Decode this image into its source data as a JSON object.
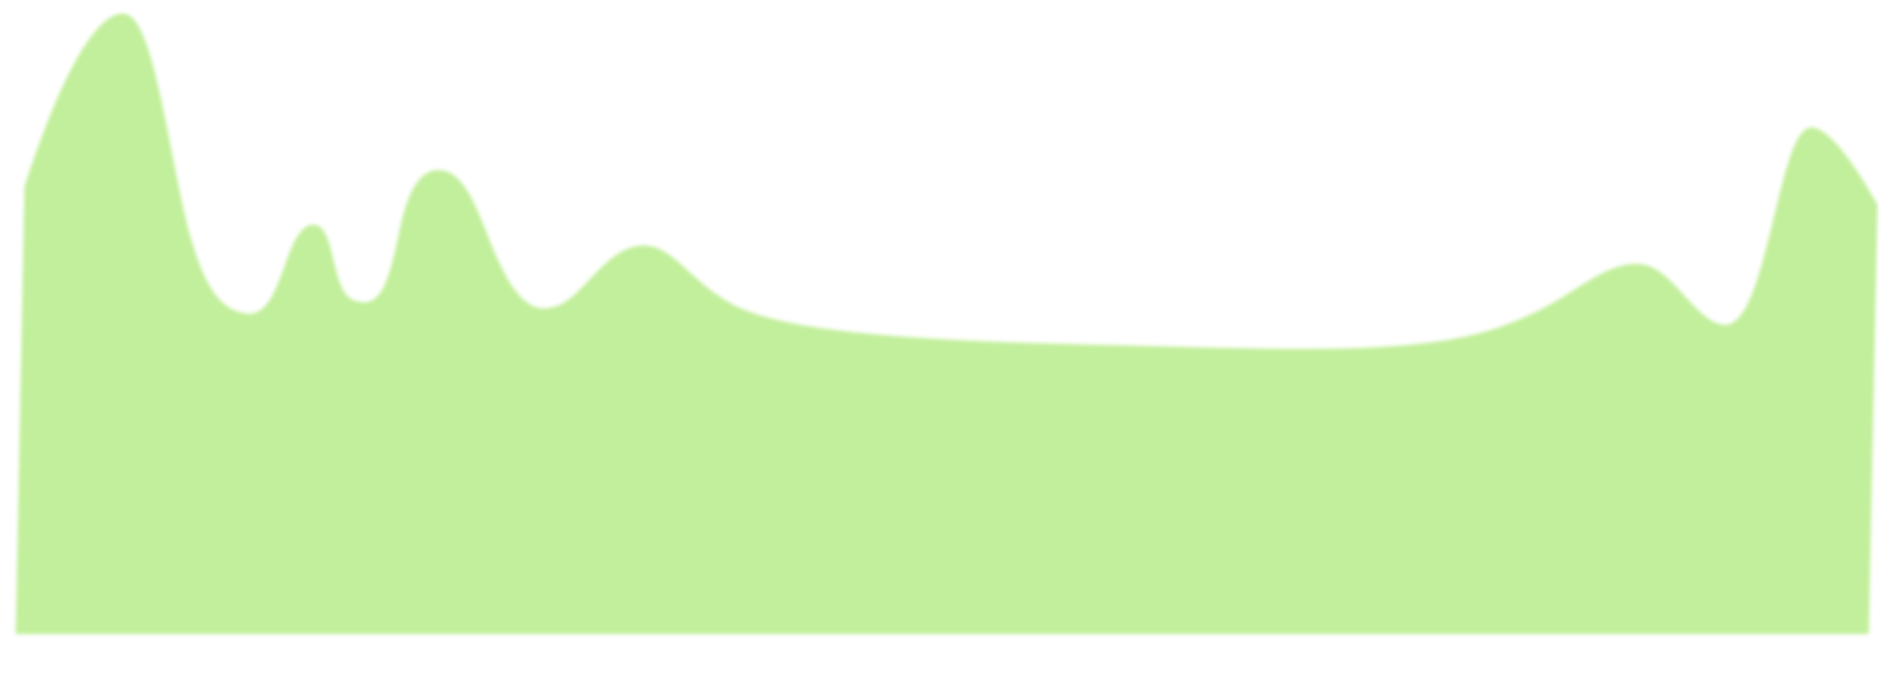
{
  "shape": {
    "name": "green-wave-blob",
    "fill": "#c2ef9b",
    "background": "#ffffff"
  }
}
